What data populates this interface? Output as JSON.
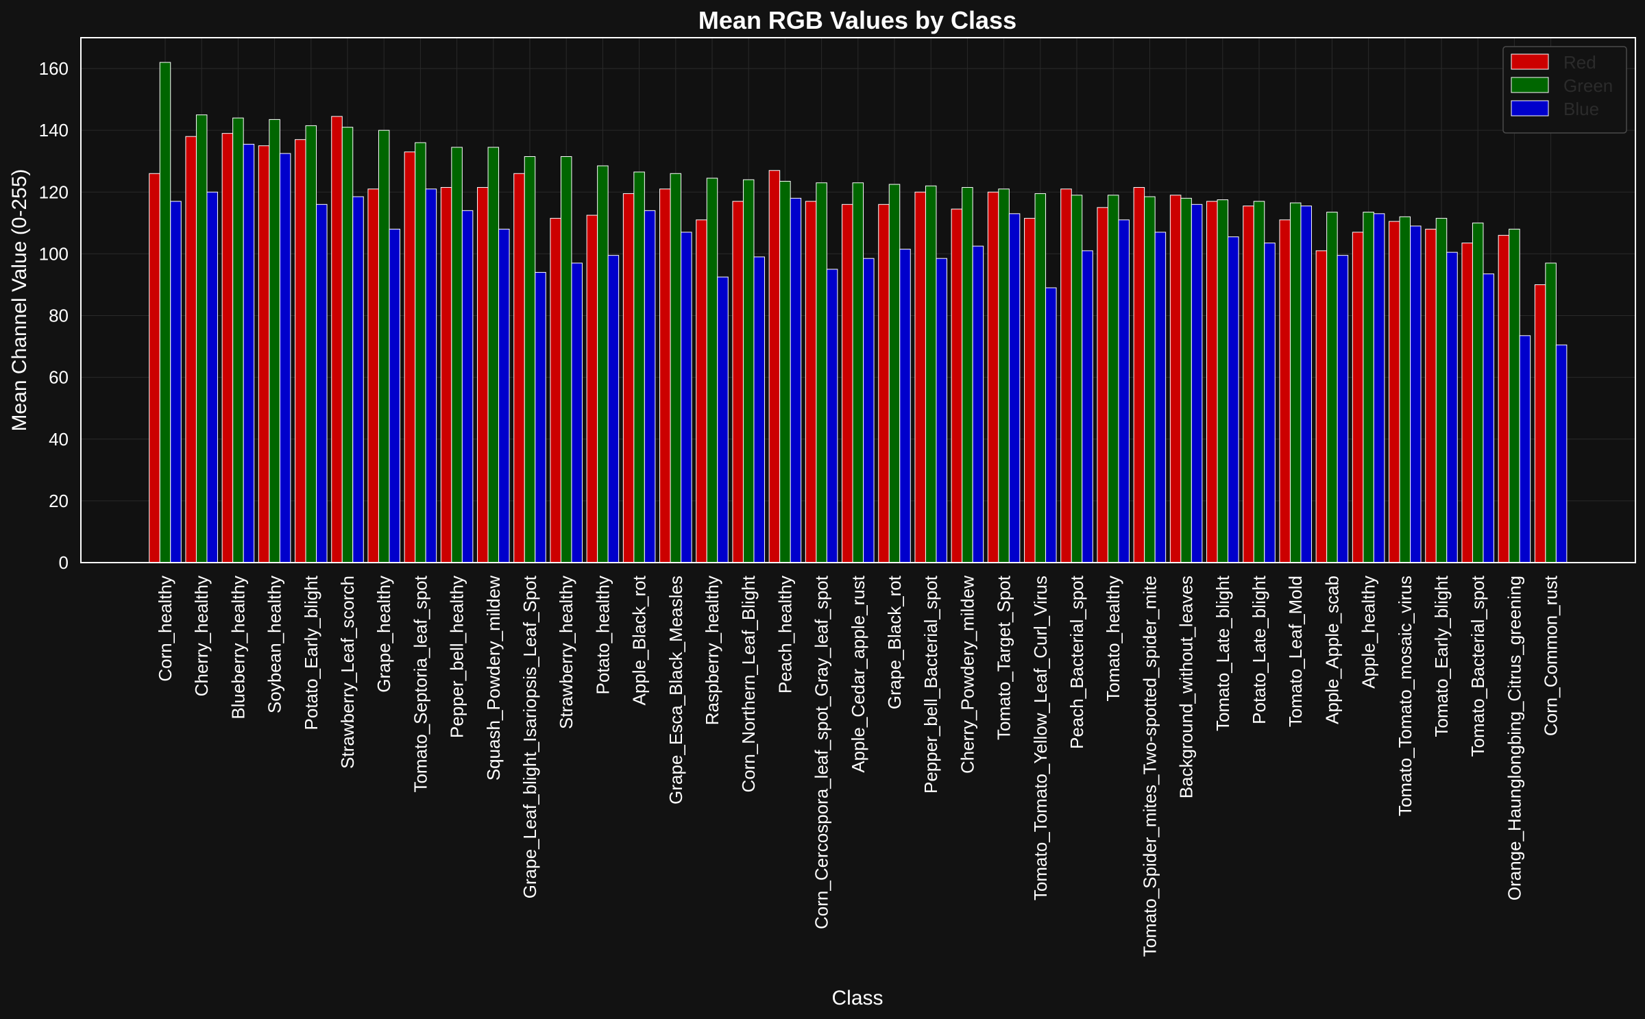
{
  "chart_data": {
    "type": "bar",
    "title": "Mean RGB Values by Class",
    "xlabel": "Class",
    "ylabel": "Mean Channel Value (0-255)",
    "ylim": [
      0,
      170
    ],
    "yticks": [
      0,
      20,
      40,
      60,
      80,
      100,
      120,
      140,
      160
    ],
    "grid": true,
    "legend_position": "top-right",
    "categories": [
      "Corn_healthy",
      "Cherry_healthy",
      "Blueberry_healthy",
      "Soybean_healthy",
      "Potato_Early_blight",
      "Strawberry_Leaf_scorch",
      "Grape_healthy",
      "Tomato_Septoria_leaf_spot",
      "Pepper_bell_healthy",
      "Squash_Powdery_mildew",
      "Grape_Leaf_blight_Isariopsis_Leaf_Spot",
      "Strawberry_healthy",
      "Potato_healthy",
      "Apple_Black_rot",
      "Grape_Esca_Black_Measles",
      "Raspberry_healthy",
      "Corn_Northern_Leaf_Blight",
      "Peach_healthy",
      "Corn_Cercospora_leaf_spot_Gray_leaf_spot",
      "Apple_Cedar_apple_rust",
      "Grape_Black_rot",
      "Pepper_bell_Bacterial_spot",
      "Cherry_Powdery_mildew",
      "Tomato_Target_Spot",
      "Tomato_Tomato_Yellow_Leaf_Curl_Virus",
      "Peach_Bacterial_spot",
      "Tomato_healthy",
      "Tomato_Spider_mites_Two-spotted_spider_mite",
      "Background_without_leaves",
      "Tomato_Late_blight",
      "Potato_Late_blight",
      "Tomato_Leaf_Mold",
      "Apple_Apple_scab",
      "Apple_healthy",
      "Tomato_Tomato_mosaic_virus",
      "Tomato_Early_blight",
      "Tomato_Bacterial_spot",
      "Orange_Haunglongbing_Citrus_greening",
      "Corn_Common_rust"
    ],
    "series": [
      {
        "name": "Red",
        "color": "#cc0000",
        "values": [
          126,
          138,
          139,
          135,
          137,
          144.5,
          121,
          133,
          121.5,
          121.5,
          126,
          111.5,
          112.5,
          119.5,
          121,
          111,
          117,
          127,
          117,
          116,
          116,
          120,
          114.5,
          120,
          111.5,
          121,
          115,
          121.5,
          119,
          117,
          115.5,
          111,
          101,
          107,
          110.5,
          108,
          103.5,
          106,
          90
        ]
      },
      {
        "name": "Green",
        "color": "#006600",
        "values": [
          162,
          145,
          144,
          143.5,
          141.5,
          141,
          140,
          136,
          134.5,
          134.5,
          131.5,
          131.5,
          128.5,
          126.5,
          126,
          124.5,
          124,
          123.5,
          123,
          123,
          122.5,
          122,
          121.5,
          121,
          119.5,
          119,
          119,
          118.5,
          118,
          117.5,
          117,
          116.5,
          113.5,
          113.5,
          112,
          111.5,
          110,
          108,
          97
        ]
      },
      {
        "name": "Blue",
        "color": "#0000cc",
        "values": [
          117,
          120,
          135.5,
          132.5,
          116,
          118.5,
          108,
          121,
          114,
          108,
          94,
          97,
          99.5,
          114,
          107,
          92.5,
          99,
          118,
          95,
          98.5,
          101.5,
          98.5,
          102.5,
          113,
          89,
          101,
          111,
          107,
          116,
          105.5,
          103.5,
          115.5,
          99.5,
          113,
          109,
          100.5,
          93.5,
          73.5,
          70.5
        ]
      }
    ]
  }
}
